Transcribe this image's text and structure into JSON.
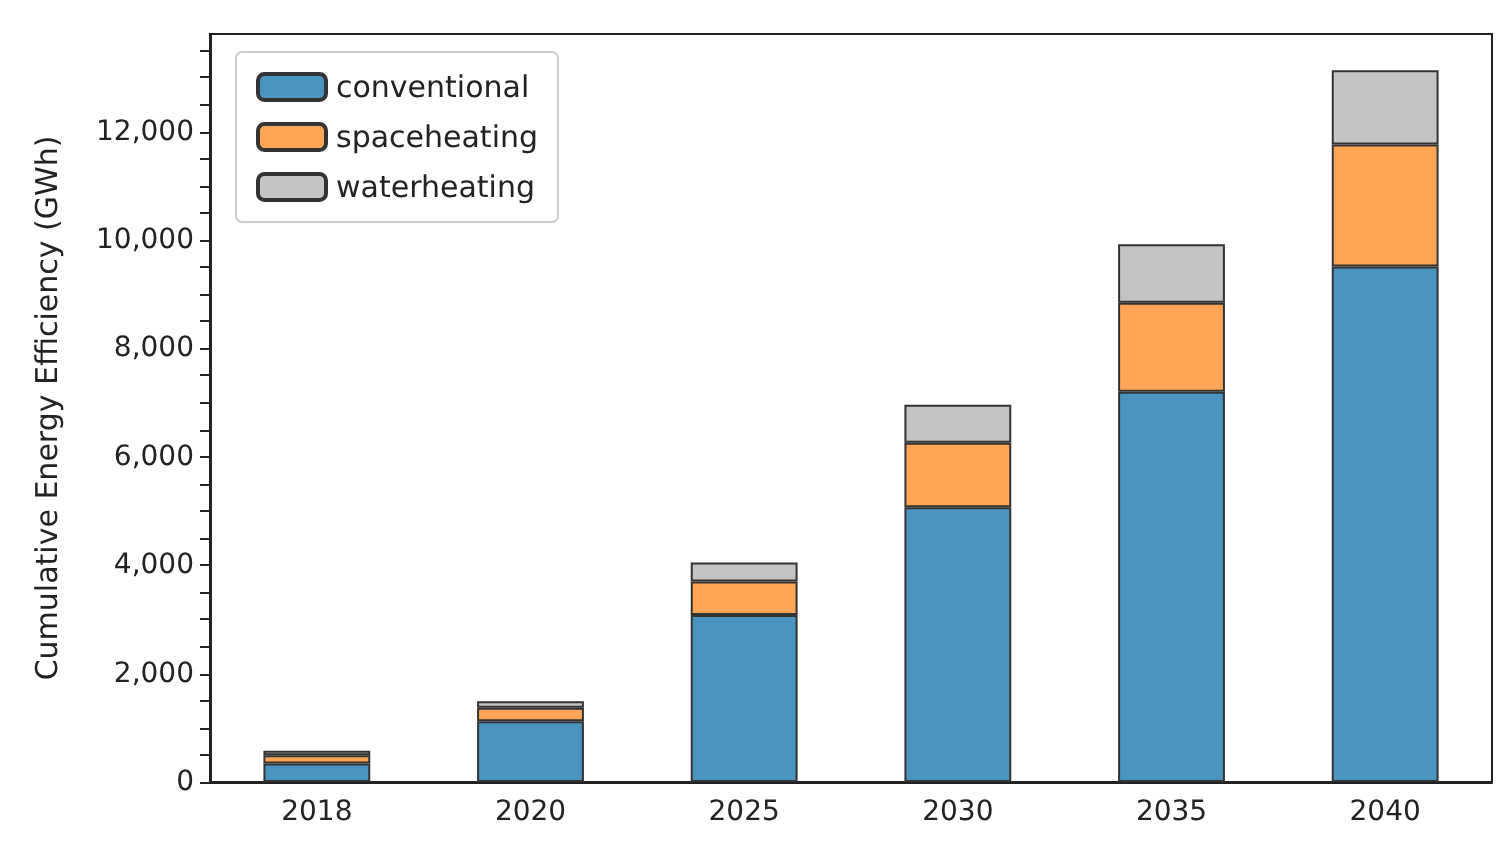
{
  "chart_data": {
    "type": "bar",
    "stacked": true,
    "ylabel": "Cumulative Energy Efficiency (GWh)",
    "categories": [
      "2018",
      "2020",
      "2025",
      "2030",
      "2035",
      "2040"
    ],
    "series": [
      {
        "name": "conventional",
        "color": "#4a94c0",
        "values": [
          340,
          1120,
          3080,
          5070,
          7200,
          9510
        ]
      },
      {
        "name": "spaceheating",
        "color": "#ffa556",
        "values": [
          155,
          250,
          620,
          1190,
          1640,
          2250
        ]
      },
      {
        "name": "waterheating",
        "color": "#c4c4c4",
        "values": [
          80,
          120,
          350,
          700,
          1080,
          1370
        ]
      }
    ],
    "ylim": [
      0,
      13800
    ],
    "yticks": [
      {
        "value": 0,
        "label": "0"
      },
      {
        "value": 500,
        "label": null
      },
      {
        "value": 1000,
        "label": null
      },
      {
        "value": 1500,
        "label": null
      },
      {
        "value": 2000,
        "label": "2,000"
      },
      {
        "value": 2500,
        "label": null
      },
      {
        "value": 3000,
        "label": null
      },
      {
        "value": 3500,
        "label": null
      },
      {
        "value": 4000,
        "label": "4,000"
      },
      {
        "value": 4500,
        "label": null
      },
      {
        "value": 5000,
        "label": null
      },
      {
        "value": 5500,
        "label": null
      },
      {
        "value": 6000,
        "label": "6,000"
      },
      {
        "value": 6500,
        "label": null
      },
      {
        "value": 7000,
        "label": null
      },
      {
        "value": 7500,
        "label": null
      },
      {
        "value": 8000,
        "label": "8,000"
      },
      {
        "value": 8500,
        "label": null
      },
      {
        "value": 9000,
        "label": null
      },
      {
        "value": 9500,
        "label": null
      },
      {
        "value": 10000,
        "label": "10,000"
      },
      {
        "value": 10500,
        "label": null
      },
      {
        "value": 11000,
        "label": null
      },
      {
        "value": 11500,
        "label": null
      },
      {
        "value": 12000,
        "label": "12,000"
      },
      {
        "value": 12500,
        "label": null
      },
      {
        "value": 13000,
        "label": null
      },
      {
        "value": 13500,
        "label": null
      }
    ],
    "legend": "top left",
    "grid": false
  }
}
